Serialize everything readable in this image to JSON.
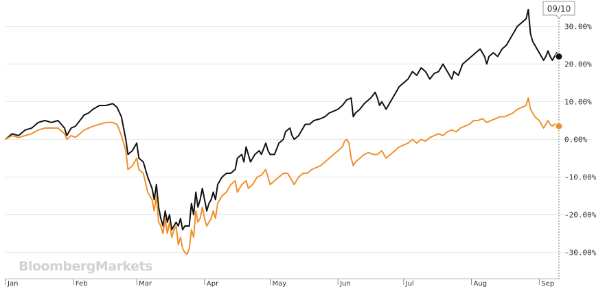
{
  "chart_data": {
    "type": "line",
    "title": "",
    "xlabel": "",
    "ylabel": "",
    "ylim": [
      -37,
      37
    ],
    "y_ticks": [
      {
        "value": 30,
        "label": "30.00%"
      },
      {
        "value": 20,
        "label": "20.00%"
      },
      {
        "value": 10,
        "label": "10.00%"
      },
      {
        "value": 0,
        "label": "0.00%"
      },
      {
        "value": -10,
        "label": "-10.00%"
      },
      {
        "value": -20,
        "label": "-20.00%"
      },
      {
        "value": -30,
        "label": "-30.00%"
      }
    ],
    "x_ticks": [
      {
        "day": 0,
        "label": "Jan"
      },
      {
        "day": 31,
        "label": "Feb"
      },
      {
        "day": 60,
        "label": "Mar"
      },
      {
        "day": 91,
        "label": "Apr"
      },
      {
        "day": 121,
        "label": "May"
      },
      {
        "day": 152,
        "label": "Jun"
      },
      {
        "day": 182,
        "label": "Jul"
      },
      {
        "day": 213,
        "label": "Aug"
      },
      {
        "day": 244,
        "label": "Sep"
      }
    ],
    "xlim_days": [
      0,
      253
    ],
    "grid": true,
    "legend": "none",
    "marker_label": "09/10",
    "marker_day": 253,
    "series": [
      {
        "color": "#111111",
        "points": [
          [
            0,
            0
          ],
          [
            3,
            1.5
          ],
          [
            6,
            1
          ],
          [
            9,
            2.5
          ],
          [
            12,
            3
          ],
          [
            15,
            4.5
          ],
          [
            18,
            5
          ],
          [
            21,
            4.5
          ],
          [
            24,
            5
          ],
          [
            27,
            3
          ],
          [
            28,
            1
          ],
          [
            30,
            3
          ],
          [
            32,
            3.5
          ],
          [
            34,
            5
          ],
          [
            36,
            6.5
          ],
          [
            38,
            7
          ],
          [
            40,
            8
          ],
          [
            43,
            9
          ],
          [
            46,
            9
          ],
          [
            49,
            9.5
          ],
          [
            51,
            8.5
          ],
          [
            53,
            6
          ],
          [
            55,
            0
          ],
          [
            56,
            -4
          ],
          [
            58,
            -3
          ],
          [
            60,
            -1
          ],
          [
            61,
            -5
          ],
          [
            63,
            -6
          ],
          [
            65,
            -10
          ],
          [
            67,
            -13
          ],
          [
            68,
            -16
          ],
          [
            69,
            -12
          ],
          [
            70,
            -18
          ],
          [
            71,
            -21
          ],
          [
            72,
            -23
          ],
          [
            73,
            -19
          ],
          [
            74,
            -22
          ],
          [
            75,
            -20
          ],
          [
            76,
            -24
          ],
          [
            77,
            -23
          ],
          [
            78,
            -22
          ],
          [
            79,
            -23
          ],
          [
            80,
            -21
          ],
          [
            81,
            -24
          ],
          [
            82,
            -23
          ],
          [
            83,
            -23
          ],
          [
            84,
            -23
          ],
          [
            85,
            -17
          ],
          [
            86,
            -20
          ],
          [
            87,
            -14
          ],
          [
            88,
            -18
          ],
          [
            89,
            -16
          ],
          [
            90,
            -13
          ],
          [
            91,
            -16
          ],
          [
            92,
            -19
          ],
          [
            93,
            -17
          ],
          [
            94,
            -16
          ],
          [
            95,
            -14
          ],
          [
            96,
            -16
          ],
          [
            97,
            -12
          ],
          [
            99,
            -10
          ],
          [
            101,
            -9
          ],
          [
            103,
            -9
          ],
          [
            105,
            -8
          ],
          [
            106,
            -5
          ],
          [
            108,
            -4
          ],
          [
            109,
            -6
          ],
          [
            110,
            -2
          ],
          [
            111,
            -4
          ],
          [
            112,
            -6
          ],
          [
            114,
            -4
          ],
          [
            116,
            -3
          ],
          [
            117,
            -4
          ],
          [
            119,
            -1
          ],
          [
            120,
            -3
          ],
          [
            121,
            -4
          ],
          [
            123,
            -4
          ],
          [
            125,
            -1
          ],
          [
            127,
            0
          ],
          [
            128,
            2
          ],
          [
            130,
            3
          ],
          [
            131,
            1
          ],
          [
            132,
            0
          ],
          [
            134,
            1
          ],
          [
            136,
            3
          ],
          [
            137,
            4
          ],
          [
            139,
            4
          ],
          [
            141,
            5
          ],
          [
            144,
            5.5
          ],
          [
            146,
            6
          ],
          [
            148,
            7
          ],
          [
            150,
            7.5
          ],
          [
            152,
            8
          ],
          [
            154,
            9
          ],
          [
            156,
            10.5
          ],
          [
            158,
            11
          ],
          [
            159,
            6
          ],
          [
            160,
            7
          ],
          [
            162,
            8
          ],
          [
            164,
            9.5
          ],
          [
            165,
            10
          ],
          [
            167,
            11
          ],
          [
            169,
            12.5
          ],
          [
            170,
            11
          ],
          [
            171,
            9
          ],
          [
            172,
            10
          ],
          [
            174,
            8
          ],
          [
            176,
            10
          ],
          [
            178,
            12
          ],
          [
            180,
            14
          ],
          [
            182,
            15
          ],
          [
            184,
            16
          ],
          [
            186,
            18
          ],
          [
            188,
            17
          ],
          [
            190,
            19
          ],
          [
            192,
            18
          ],
          [
            194,
            16
          ],
          [
            196,
            17.5
          ],
          [
            198,
            18
          ],
          [
            200,
            20
          ],
          [
            201,
            19
          ],
          [
            203,
            17
          ],
          [
            204,
            16
          ],
          [
            205,
            18
          ],
          [
            207,
            17
          ],
          [
            209,
            20
          ],
          [
            211,
            21
          ],
          [
            213,
            22
          ],
          [
            215,
            23
          ],
          [
            217,
            24
          ],
          [
            219,
            22
          ],
          [
            220,
            20
          ],
          [
            221,
            22
          ],
          [
            223,
            23
          ],
          [
            225,
            22
          ],
          [
            227,
            24
          ],
          [
            229,
            25
          ],
          [
            231,
            27
          ],
          [
            233,
            29
          ],
          [
            234,
            30
          ],
          [
            236,
            31
          ],
          [
            238,
            32
          ],
          [
            239,
            34.5
          ],
          [
            240,
            28
          ],
          [
            241,
            26
          ],
          [
            242,
            25
          ],
          [
            243,
            24
          ],
          [
            244,
            23
          ],
          [
            245,
            22
          ],
          [
            246,
            21
          ],
          [
            247,
            22
          ],
          [
            248,
            23.5
          ],
          [
            249,
            22
          ],
          [
            250,
            21
          ],
          [
            251,
            22
          ],
          [
            252,
            23
          ],
          [
            253,
            22
          ]
        ]
      },
      {
        "color": "#f0902a",
        "points": [
          [
            0,
            0
          ],
          [
            3,
            1
          ],
          [
            6,
            0.5
          ],
          [
            9,
            1
          ],
          [
            12,
            1.5
          ],
          [
            15,
            2.5
          ],
          [
            18,
            3
          ],
          [
            21,
            3
          ],
          [
            24,
            3
          ],
          [
            27,
            1.5
          ],
          [
            28,
            0
          ],
          [
            30,
            1
          ],
          [
            32,
            0.5
          ],
          [
            34,
            1.5
          ],
          [
            36,
            2.5
          ],
          [
            38,
            3
          ],
          [
            40,
            3.5
          ],
          [
            43,
            4
          ],
          [
            46,
            4.5
          ],
          [
            49,
            4.5
          ],
          [
            51,
            4
          ],
          [
            53,
            1
          ],
          [
            55,
            -3
          ],
          [
            56,
            -8
          ],
          [
            58,
            -7
          ],
          [
            60,
            -5
          ],
          [
            61,
            -8
          ],
          [
            63,
            -9
          ],
          [
            65,
            -14
          ],
          [
            67,
            -16
          ],
          [
            68,
            -19
          ],
          [
            69,
            -15
          ],
          [
            70,
            -22
          ],
          [
            71,
            -23
          ],
          [
            72,
            -25
          ],
          [
            73,
            -21
          ],
          [
            74,
            -25
          ],
          [
            75,
            -22
          ],
          [
            76,
            -26
          ],
          [
            77,
            -24
          ],
          [
            78,
            -23
          ],
          [
            79,
            -28
          ],
          [
            80,
            -26
          ],
          [
            81,
            -29
          ],
          [
            82,
            -30
          ],
          [
            83,
            -30.5
          ],
          [
            84,
            -29
          ],
          [
            85,
            -24
          ],
          [
            86,
            -26
          ],
          [
            87,
            -19
          ],
          [
            88,
            -22
          ],
          [
            89,
            -21
          ],
          [
            90,
            -18
          ],
          [
            91,
            -21
          ],
          [
            92,
            -23
          ],
          [
            93,
            -22
          ],
          [
            94,
            -21
          ],
          [
            95,
            -19
          ],
          [
            96,
            -21
          ],
          [
            97,
            -17
          ],
          [
            99,
            -15
          ],
          [
            101,
            -14
          ],
          [
            103,
            -12
          ],
          [
            105,
            -11
          ],
          [
            106,
            -14
          ],
          [
            107,
            -13
          ],
          [
            108,
            -12
          ],
          [
            110,
            -11
          ],
          [
            111,
            -13
          ],
          [
            113,
            -12
          ],
          [
            115,
            -10
          ],
          [
            117,
            -9.5
          ],
          [
            119,
            -8
          ],
          [
            120,
            -10
          ],
          [
            121,
            -12
          ],
          [
            123,
            -11
          ],
          [
            125,
            -10
          ],
          [
            127,
            -9
          ],
          [
            129,
            -9
          ],
          [
            131,
            -11
          ],
          [
            132,
            -12
          ],
          [
            134,
            -10
          ],
          [
            136,
            -9
          ],
          [
            138,
            -9
          ],
          [
            140,
            -8
          ],
          [
            142,
            -7.5
          ],
          [
            144,
            -7
          ],
          [
            146,
            -6
          ],
          [
            148,
            -5
          ],
          [
            150,
            -4
          ],
          [
            152,
            -3
          ],
          [
            154,
            -2
          ],
          [
            155,
            -0.5
          ],
          [
            156,
            0
          ],
          [
            157,
            -1
          ],
          [
            158,
            -5
          ],
          [
            159,
            -7
          ],
          [
            160,
            -6
          ],
          [
            162,
            -5
          ],
          [
            164,
            -4
          ],
          [
            166,
            -3.5
          ],
          [
            168,
            -4
          ],
          [
            170,
            -4
          ],
          [
            172,
            -3
          ],
          [
            174,
            -5
          ],
          [
            176,
            -4
          ],
          [
            178,
            -3
          ],
          [
            180,
            -2
          ],
          [
            182,
            -1.5
          ],
          [
            184,
            -1
          ],
          [
            186,
            0
          ],
          [
            188,
            -1
          ],
          [
            190,
            0
          ],
          [
            192,
            -0.5
          ],
          [
            194,
            0.5
          ],
          [
            196,
            1
          ],
          [
            198,
            1.5
          ],
          [
            200,
            1
          ],
          [
            202,
            2
          ],
          [
            204,
            2.5
          ],
          [
            206,
            2
          ],
          [
            208,
            3
          ],
          [
            210,
            3.5
          ],
          [
            212,
            4
          ],
          [
            214,
            5
          ],
          [
            216,
            5
          ],
          [
            218,
            5.5
          ],
          [
            220,
            4.5
          ],
          [
            222,
            5
          ],
          [
            224,
            5.5
          ],
          [
            226,
            6
          ],
          [
            228,
            6
          ],
          [
            230,
            6.5
          ],
          [
            232,
            7
          ],
          [
            234,
            8
          ],
          [
            236,
            8.5
          ],
          [
            238,
            9
          ],
          [
            239,
            11
          ],
          [
            240,
            8
          ],
          [
            241,
            7
          ],
          [
            242,
            6
          ],
          [
            243,
            5.5
          ],
          [
            244,
            5
          ],
          [
            245,
            4
          ],
          [
            246,
            3
          ],
          [
            247,
            4
          ],
          [
            248,
            5
          ],
          [
            249,
            4
          ],
          [
            250,
            3.5
          ],
          [
            251,
            4
          ],
          [
            252,
            4
          ],
          [
            253,
            3.5
          ]
        ]
      }
    ],
    "watermark": "BloombergMarkets"
  }
}
